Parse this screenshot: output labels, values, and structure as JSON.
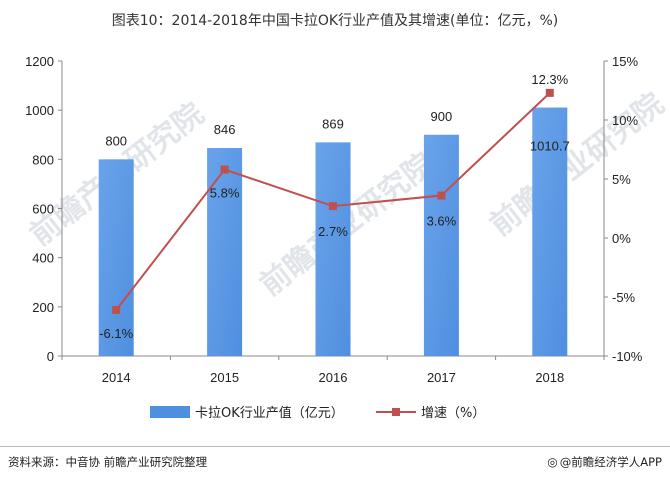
{
  "title": "图表10：2014-2018年中国卡拉OK行业产值及其增速(单位：亿元，%)",
  "chart_data": {
    "type": "bar",
    "categories": [
      "2014",
      "2015",
      "2016",
      "2017",
      "2018"
    ],
    "series": [
      {
        "name": "卡拉OK行业产值（亿元）",
        "type": "bar",
        "axis": "left",
        "values": [
          800,
          846,
          869,
          900,
          1010.7
        ],
        "labels": [
          "800",
          "846",
          "869",
          "900",
          "1010.7"
        ]
      },
      {
        "name": "增速（%）",
        "type": "line",
        "axis": "right",
        "values": [
          -6.1,
          5.8,
          2.7,
          3.6,
          12.3
        ],
        "labels": [
          "-6.1%",
          "5.8%",
          "2.7%",
          "3.6%",
          "12.3%"
        ]
      }
    ],
    "y_left": {
      "min": 0,
      "max": 1200,
      "ticks": [
        "0",
        "200",
        "400",
        "600",
        "800",
        "1000",
        "1200"
      ]
    },
    "y_right": {
      "min": -10,
      "max": 15,
      "ticks": [
        "-10%",
        "-5%",
        "0%",
        "5%",
        "10%",
        "15%"
      ]
    },
    "grid": false,
    "legend": "bottom",
    "colors": {
      "bar": "#4f8fe0",
      "line": "#c0504d"
    }
  },
  "footer": {
    "source": "资料来源：中音协 前瞻产业研究院整理",
    "brand": "@前瞻经济学人APP",
    "brand_icon": "logo-icon"
  },
  "watermark": "前瞻产业研究院"
}
